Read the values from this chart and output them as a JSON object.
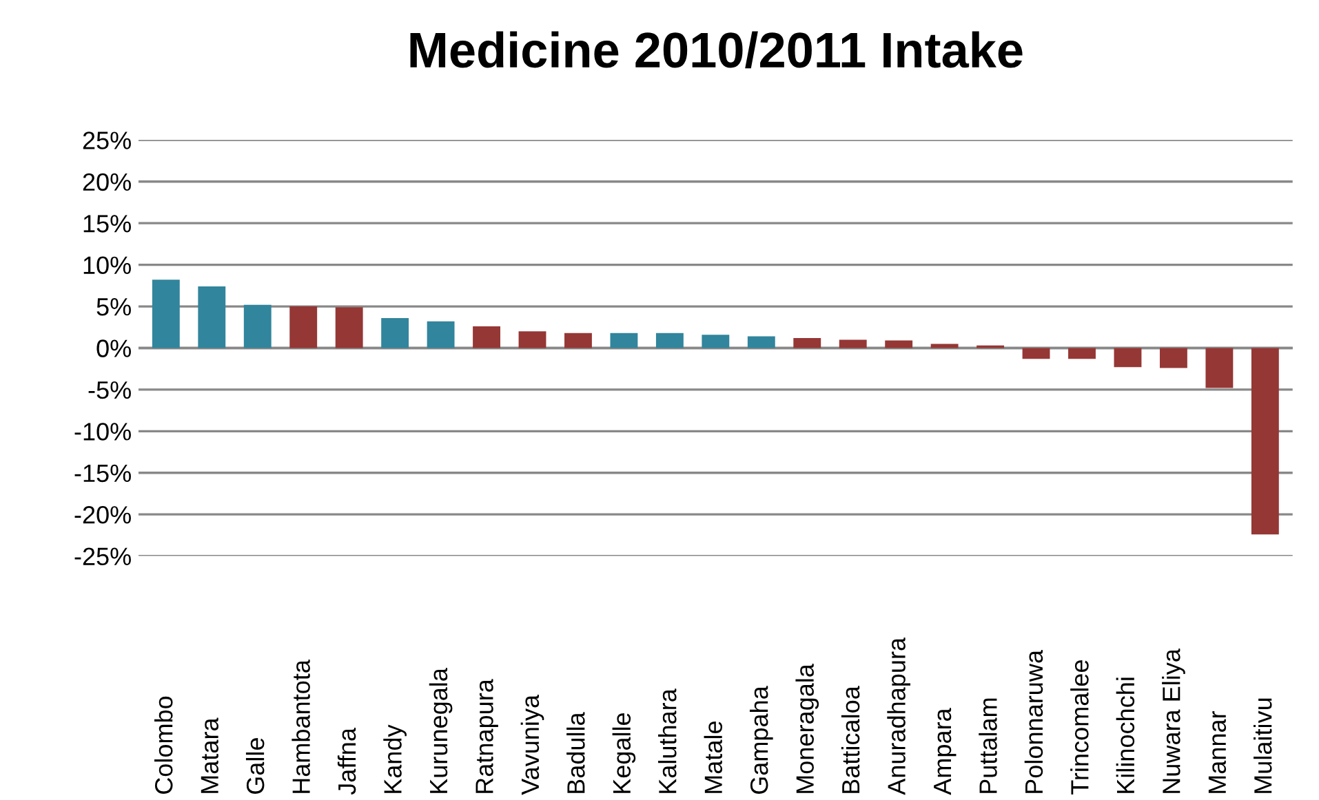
{
  "chart_data": {
    "type": "bar",
    "title": "Medicine 2010/2011 Intake",
    "categories": [
      "Colombo",
      "Matara",
      "Galle",
      "Hambantota",
      "Jaffna",
      "Kandy",
      "Kurunegala",
      "Ratnapura",
      "Vavuniya",
      "Badulla",
      "Kegalle",
      "Kaluthara",
      "Matale",
      "Gampaha",
      "Moneragala",
      "Batticaloa",
      "Anuradhapura",
      "Ampara",
      "Puttalam",
      "Polonnaruwa",
      "Trincomalee",
      "Kilinochchi",
      "Nuwara Eliya",
      "Mannar",
      "Mulaitivu"
    ],
    "values": [
      8.2,
      7.4,
      5.2,
      5.0,
      4.9,
      3.6,
      3.2,
      2.6,
      2.0,
      1.8,
      1.8,
      1.8,
      1.6,
      1.4,
      1.2,
      1.0,
      0.9,
      0.5,
      0.3,
      -1.3,
      -1.3,
      -2.3,
      -2.4,
      -4.8,
      -22.4
    ],
    "colors": [
      "#31859c",
      "#31859c",
      "#31859c",
      "#953735",
      "#953735",
      "#31859c",
      "#31859c",
      "#953735",
      "#953735",
      "#953735",
      "#31859c",
      "#31859c",
      "#31859c",
      "#31859c",
      "#953735",
      "#953735",
      "#953735",
      "#953735",
      "#953735",
      "#953735",
      "#953735",
      "#953735",
      "#953735",
      "#953735",
      "#953735"
    ],
    "ylim": [
      -25,
      25
    ],
    "yticks": [
      {
        "value": -25,
        "label": "-25%"
      },
      {
        "value": -20,
        "label": "-20%"
      },
      {
        "value": -15,
        "label": "-15%"
      },
      {
        "value": -10,
        "label": "-10%"
      },
      {
        "value": -5,
        "label": "-5%"
      },
      {
        "value": 0,
        "label": "0%"
      },
      {
        "value": 5,
        "label": "5%"
      },
      {
        "value": 10,
        "label": "10%"
      },
      {
        "value": 15,
        "label": "15%"
      },
      {
        "value": 20,
        "label": "20%"
      },
      {
        "value": 25,
        "label": "25%"
      }
    ],
    "grid": "y",
    "legend": false
  }
}
